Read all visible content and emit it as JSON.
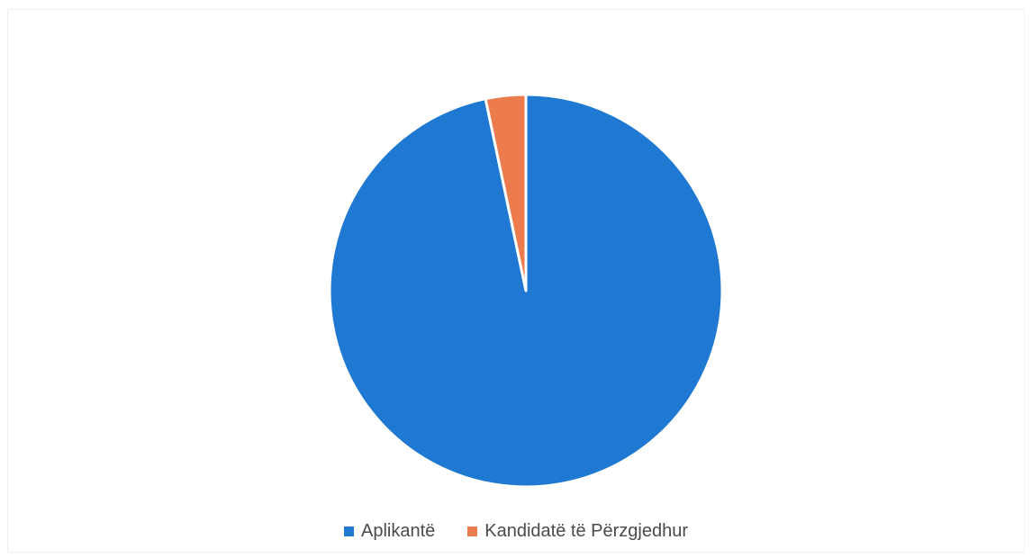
{
  "chart_data": {
    "type": "pie",
    "title": "",
    "legend_position": "bottom",
    "slices": [
      {
        "label": "Aplikantë",
        "value": 96.7,
        "color": "#1f78d1"
      },
      {
        "label": "Kandidatë të Përzgjedhur",
        "value": 3.3,
        "color": "#ec7b4d"
      }
    ]
  }
}
